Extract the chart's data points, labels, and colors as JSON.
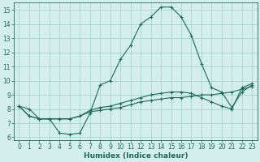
{
  "xlabel": "Humidex (Indice chaleur)",
  "background_color": "#d4eeed",
  "grid_color": "#9ecfcf",
  "line_color": "#1a6b5a",
  "xlim": [
    -0.5,
    23.5
  ],
  "ylim": [
    5.8,
    15.5
  ],
  "yticks": [
    6,
    7,
    8,
    9,
    10,
    11,
    12,
    13,
    14,
    15
  ],
  "xticks": [
    0,
    1,
    2,
    3,
    4,
    5,
    6,
    7,
    8,
    9,
    10,
    11,
    12,
    13,
    14,
    15,
    16,
    17,
    18,
    19,
    20,
    21,
    22,
    23
  ],
  "series1_x": [
    0,
    1,
    2,
    3,
    4,
    5,
    6,
    7,
    8,
    9,
    10,
    11,
    12,
    13,
    14,
    15,
    16,
    17,
    18,
    19,
    20,
    21,
    22,
    23
  ],
  "series1_y": [
    8.2,
    8.0,
    7.3,
    7.3,
    6.3,
    6.2,
    6.3,
    7.7,
    9.7,
    10.0,
    11.5,
    12.5,
    14.0,
    14.5,
    15.2,
    15.2,
    14.5,
    13.2,
    11.2,
    9.5,
    9.2,
    8.1,
    9.2,
    9.7
  ],
  "series2_x": [
    0,
    1,
    2,
    3,
    4,
    5,
    6,
    7,
    8,
    9,
    10,
    11,
    12,
    13,
    14,
    15,
    16,
    17,
    18,
    19,
    20,
    21,
    22,
    23
  ],
  "series2_y": [
    8.2,
    7.5,
    7.3,
    7.3,
    7.3,
    7.3,
    7.5,
    7.8,
    7.9,
    8.0,
    8.1,
    8.3,
    8.5,
    8.6,
    8.7,
    8.8,
    8.8,
    8.9,
    9.0,
    9.0,
    9.1,
    9.2,
    9.4,
    9.6
  ],
  "series3_x": [
    0,
    1,
    2,
    3,
    4,
    5,
    6,
    7,
    8,
    9,
    10,
    11,
    12,
    13,
    14,
    15,
    16,
    17,
    18,
    19,
    20,
    21,
    22,
    23
  ],
  "series3_y": [
    8.2,
    7.5,
    7.3,
    7.3,
    7.3,
    7.3,
    7.5,
    7.9,
    8.1,
    8.2,
    8.4,
    8.6,
    8.8,
    9.0,
    9.1,
    9.2,
    9.2,
    9.1,
    8.8,
    8.5,
    8.2,
    8.0,
    9.5,
    9.8
  ],
  "tick_fontsize": 5.5,
  "xlabel_fontsize": 6.5,
  "lw": 0.8,
  "marker_size": 3.0
}
